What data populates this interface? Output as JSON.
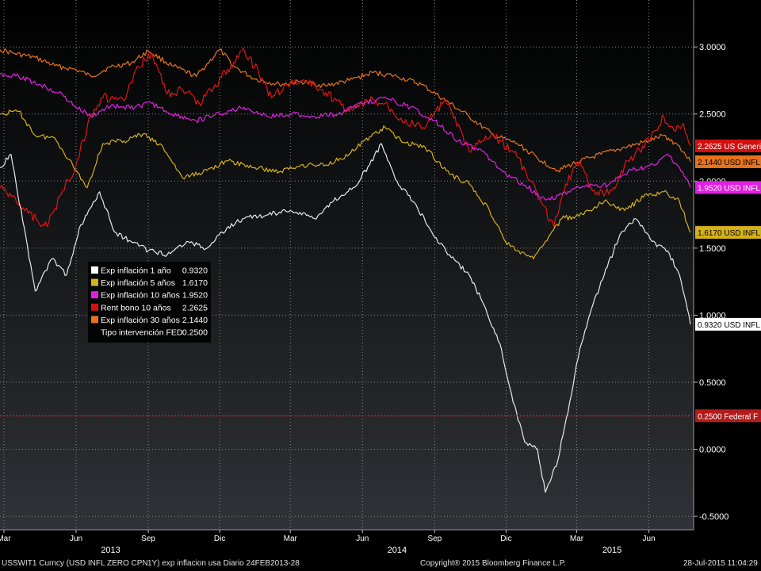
{
  "chart_data": {
    "type": "line",
    "title": "",
    "ylim": [
      -0.6,
      3.35
    ],
    "y_ticks": [
      -0.5,
      0.0,
      0.5,
      1.0,
      1.5,
      2.0,
      2.5,
      3.0
    ],
    "y_tick_labels": [
      "-0.5000",
      "0.0000",
      "0.5000",
      "1.0000",
      "1.5000",
      "2.0000",
      "2.5000",
      "3.0000"
    ],
    "x_range": [
      "2013-02-24",
      "2015-07-28"
    ],
    "x_ticks": [
      {
        "date": "2013-03-01",
        "label": "Mar"
      },
      {
        "date": "2013-06-01",
        "label": "Jun"
      },
      {
        "date": "2013-09-01",
        "label": "Sep"
      },
      {
        "date": "2013-12-01",
        "label": "Dic"
      },
      {
        "date": "2014-03-01",
        "label": "Mar"
      },
      {
        "date": "2014-06-01",
        "label": "Jun"
      },
      {
        "date": "2014-09-01",
        "label": "Sep"
      },
      {
        "date": "2014-12-01",
        "label": "Dic"
      },
      {
        "date": "2015-03-01",
        "label": "Mar"
      },
      {
        "date": "2015-06-01",
        "label": "Jun"
      }
    ],
    "year_labels": [
      {
        "date": "2013-07-15",
        "label": "2013"
      },
      {
        "date": "2014-07-15",
        "label": "2014"
      },
      {
        "date": "2015-04-15",
        "label": "2015"
      }
    ],
    "legend_position": "middle-left",
    "grid": true,
    "series": [
      {
        "name": "Exp inflación 30 años",
        "last": "2.1440",
        "tag": "2.1440 USD INFL",
        "color": "#e8731a",
        "tag_bg": "#e8731a",
        "tag_fg": "#000000",
        "points": [
          [
            "2013-02-24",
            2.98
          ],
          [
            "2013-03-15",
            2.95
          ],
          [
            "2013-04-10",
            2.92
          ],
          [
            "2013-05-05",
            2.86
          ],
          [
            "2013-06-01",
            2.83
          ],
          [
            "2013-06-20",
            2.78
          ],
          [
            "2013-07-15",
            2.85
          ],
          [
            "2013-08-10",
            2.88
          ],
          [
            "2013-09-01",
            2.97
          ],
          [
            "2013-10-01",
            2.86
          ],
          [
            "2013-11-01",
            2.78
          ],
          [
            "2013-12-01",
            2.98
          ],
          [
            "2013-12-20",
            2.85
          ],
          [
            "2014-01-15",
            2.76
          ],
          [
            "2014-02-15",
            2.72
          ],
          [
            "2014-03-15",
            2.74
          ],
          [
            "2014-04-15",
            2.71
          ],
          [
            "2014-05-15",
            2.75
          ],
          [
            "2014-06-15",
            2.81
          ],
          [
            "2014-07-15",
            2.78
          ],
          [
            "2014-08-15",
            2.72
          ],
          [
            "2014-09-15",
            2.6
          ],
          [
            "2014-10-15",
            2.48
          ],
          [
            "2014-11-15",
            2.34
          ],
          [
            "2014-12-15",
            2.28
          ],
          [
            "2015-01-15",
            2.15
          ],
          [
            "2015-02-05",
            2.08
          ],
          [
            "2015-03-01",
            2.14
          ],
          [
            "2015-04-01",
            2.2
          ],
          [
            "2015-05-01",
            2.25
          ],
          [
            "2015-06-01",
            2.3
          ],
          [
            "2015-06-20",
            2.34
          ],
          [
            "2015-07-10",
            2.26
          ],
          [
            "2015-07-24",
            2.144
          ]
        ]
      },
      {
        "name": "Rent bono 10 años",
        "last": "2.2625",
        "tag": "2.2625 US Generi",
        "color": "#e01414",
        "tag_bg": "#d31010",
        "tag_fg": "#ffffff",
        "points": [
          [
            "2013-02-24",
            1.95
          ],
          [
            "2013-03-15",
            1.88
          ],
          [
            "2013-04-01",
            1.76
          ],
          [
            "2013-04-25",
            1.66
          ],
          [
            "2013-05-15",
            1.93
          ],
          [
            "2013-06-01",
            2.12
          ],
          [
            "2013-06-20",
            2.5
          ],
          [
            "2013-07-05",
            2.62
          ],
          [
            "2013-08-01",
            2.6
          ],
          [
            "2013-08-20",
            2.85
          ],
          [
            "2013-09-05",
            2.96
          ],
          [
            "2013-09-25",
            2.65
          ],
          [
            "2013-10-15",
            2.68
          ],
          [
            "2013-11-05",
            2.58
          ],
          [
            "2013-11-25",
            2.72
          ],
          [
            "2013-12-15",
            2.85
          ],
          [
            "2013-12-31",
            2.99
          ],
          [
            "2014-01-20",
            2.8
          ],
          [
            "2014-02-05",
            2.62
          ],
          [
            "2014-02-25",
            2.72
          ],
          [
            "2014-03-20",
            2.75
          ],
          [
            "2014-04-15",
            2.66
          ],
          [
            "2014-05-15",
            2.52
          ],
          [
            "2014-06-10",
            2.6
          ],
          [
            "2014-06-30",
            2.58
          ],
          [
            "2014-07-20",
            2.47
          ],
          [
            "2014-08-15",
            2.39
          ],
          [
            "2014-09-15",
            2.6
          ],
          [
            "2014-10-15",
            2.22
          ],
          [
            "2014-11-15",
            2.35
          ],
          [
            "2014-12-15",
            2.18
          ],
          [
            "2015-01-15",
            1.84
          ],
          [
            "2015-01-31",
            1.66
          ],
          [
            "2015-02-15",
            1.98
          ],
          [
            "2015-03-05",
            2.15
          ],
          [
            "2015-03-25",
            1.9
          ],
          [
            "2015-04-15",
            1.93
          ],
          [
            "2015-05-05",
            2.15
          ],
          [
            "2015-05-20",
            2.23
          ],
          [
            "2015-06-10",
            2.38
          ],
          [
            "2015-06-20",
            2.48
          ],
          [
            "2015-07-05",
            2.37
          ],
          [
            "2015-07-15",
            2.43
          ],
          [
            "2015-07-24",
            2.2625
          ]
        ]
      },
      {
        "name": "Exp inflación 10 años",
        "last": "1.9520",
        "tag": "1.9520 USD INFL",
        "color": "#e020e0",
        "tag_bg": "#e020e0",
        "tag_fg": "#ffffff",
        "points": [
          [
            "2013-02-24",
            2.8
          ],
          [
            "2013-03-20",
            2.78
          ],
          [
            "2013-04-15",
            2.72
          ],
          [
            "2013-05-10",
            2.66
          ],
          [
            "2013-06-01",
            2.55
          ],
          [
            "2013-06-20",
            2.48
          ],
          [
            "2013-07-15",
            2.56
          ],
          [
            "2013-08-15",
            2.55
          ],
          [
            "2013-09-05",
            2.58
          ],
          [
            "2013-10-01",
            2.5
          ],
          [
            "2013-11-01",
            2.45
          ],
          [
            "2013-12-01",
            2.5
          ],
          [
            "2014-01-01",
            2.55
          ],
          [
            "2014-02-01",
            2.48
          ],
          [
            "2014-03-01",
            2.5
          ],
          [
            "2014-04-01",
            2.48
          ],
          [
            "2014-05-01",
            2.5
          ],
          [
            "2014-06-01",
            2.58
          ],
          [
            "2014-07-01",
            2.62
          ],
          [
            "2014-08-01",
            2.55
          ],
          [
            "2014-09-01",
            2.45
          ],
          [
            "2014-10-01",
            2.3
          ],
          [
            "2014-11-01",
            2.22
          ],
          [
            "2014-12-01",
            2.05
          ],
          [
            "2014-12-25",
            1.97
          ],
          [
            "2015-01-20",
            1.86
          ],
          [
            "2015-02-10",
            1.9
          ],
          [
            "2015-03-10",
            1.96
          ],
          [
            "2015-04-10",
            1.97
          ],
          [
            "2015-05-10",
            2.08
          ],
          [
            "2015-06-10",
            2.12
          ],
          [
            "2015-06-25",
            2.2
          ],
          [
            "2015-07-10",
            2.1
          ],
          [
            "2015-07-24",
            1.952
          ]
        ]
      },
      {
        "name": "Exp inflación 5 años",
        "last": "1.6170",
        "tag": "1.6170 USD INFL",
        "color": "#d4b01a",
        "tag_bg": "#d4b01a",
        "tag_fg": "#000000",
        "points": [
          [
            "2013-02-24",
            2.5
          ],
          [
            "2013-03-20",
            2.52
          ],
          [
            "2013-04-10",
            2.34
          ],
          [
            "2013-05-05",
            2.32
          ],
          [
            "2013-06-01",
            2.08
          ],
          [
            "2013-06-15",
            1.95
          ],
          [
            "2013-07-05",
            2.28
          ],
          [
            "2013-08-01",
            2.3
          ],
          [
            "2013-08-25",
            2.35
          ],
          [
            "2013-09-20",
            2.25
          ],
          [
            "2013-10-15",
            2.02
          ],
          [
            "2013-11-15",
            2.08
          ],
          [
            "2013-12-10",
            2.15
          ],
          [
            "2014-01-15",
            2.1
          ],
          [
            "2014-02-15",
            2.07
          ],
          [
            "2014-03-15",
            2.12
          ],
          [
            "2014-04-15",
            2.12
          ],
          [
            "2014-05-15",
            2.2
          ],
          [
            "2014-06-10",
            2.33
          ],
          [
            "2014-06-30",
            2.4
          ],
          [
            "2014-07-20",
            2.3
          ],
          [
            "2014-08-20",
            2.25
          ],
          [
            "2014-09-20",
            2.05
          ],
          [
            "2014-10-15",
            1.98
          ],
          [
            "2014-11-10",
            1.78
          ],
          [
            "2014-11-30",
            1.55
          ],
          [
            "2014-12-15",
            1.48
          ],
          [
            "2015-01-05",
            1.42
          ],
          [
            "2015-01-20",
            1.55
          ],
          [
            "2015-02-10",
            1.72
          ],
          [
            "2015-03-10",
            1.75
          ],
          [
            "2015-04-05",
            1.85
          ],
          [
            "2015-05-01",
            1.78
          ],
          [
            "2015-05-25",
            1.88
          ],
          [
            "2015-06-20",
            1.92
          ],
          [
            "2015-07-10",
            1.85
          ],
          [
            "2015-07-24",
            1.617
          ]
        ]
      },
      {
        "name": "Exp inflación 1 año",
        "last": "0.9320",
        "tag": "0.9320 USD INFL",
        "color": "#e8e8e8",
        "tag_bg": "#ffffff",
        "tag_fg": "#000000",
        "points": [
          [
            "2013-02-24",
            2.1
          ],
          [
            "2013-03-10",
            2.2
          ],
          [
            "2013-03-25",
            1.7
          ],
          [
            "2013-04-10",
            1.18
          ],
          [
            "2013-05-01",
            1.42
          ],
          [
            "2013-05-20",
            1.3
          ],
          [
            "2013-06-05",
            1.65
          ],
          [
            "2013-06-15",
            1.75
          ],
          [
            "2013-07-01",
            1.92
          ],
          [
            "2013-07-20",
            1.62
          ],
          [
            "2013-08-10",
            1.55
          ],
          [
            "2013-09-01",
            1.48
          ],
          [
            "2013-09-25",
            1.45
          ],
          [
            "2013-10-20",
            1.55
          ],
          [
            "2013-11-15",
            1.5
          ],
          [
            "2013-12-10",
            1.65
          ],
          [
            "2014-01-01",
            1.72
          ],
          [
            "2014-02-01",
            1.75
          ],
          [
            "2014-03-01",
            1.78
          ],
          [
            "2014-04-01",
            1.72
          ],
          [
            "2014-04-25",
            1.85
          ],
          [
            "2014-05-20",
            1.95
          ],
          [
            "2014-06-10",
            2.12
          ],
          [
            "2014-06-25",
            2.28
          ],
          [
            "2014-07-15",
            2.0
          ],
          [
            "2014-08-10",
            1.8
          ],
          [
            "2014-09-01",
            1.58
          ],
          [
            "2014-09-20",
            1.45
          ],
          [
            "2014-10-15",
            1.3
          ],
          [
            "2014-11-05",
            1.05
          ],
          [
            "2014-11-25",
            0.75
          ],
          [
            "2014-12-10",
            0.35
          ],
          [
            "2014-12-25",
            0.05
          ],
          [
            "2015-01-10",
            0.0
          ],
          [
            "2015-01-20",
            -0.32
          ],
          [
            "2015-02-05",
            -0.08
          ],
          [
            "2015-02-20",
            0.35
          ],
          [
            "2015-03-05",
            0.75
          ],
          [
            "2015-03-20",
            1.05
          ],
          [
            "2015-04-05",
            1.3
          ],
          [
            "2015-04-25",
            1.6
          ],
          [
            "2015-05-15",
            1.72
          ],
          [
            "2015-06-05",
            1.55
          ],
          [
            "2015-06-25",
            1.48
          ],
          [
            "2015-07-10",
            1.3
          ],
          [
            "2015-07-24",
            0.932
          ]
        ]
      },
      {
        "name": "Tipo intervención FED",
        "last": "0.2500",
        "tag": "0.2500 Federal F",
        "color": "#c0222a",
        "tag_bg": "#b31b1b",
        "tag_fg": "#ffffff",
        "dashed": true,
        "points": [
          [
            "2013-02-24",
            0.25
          ],
          [
            "2015-07-24",
            0.25
          ]
        ]
      }
    ],
    "footer": {
      "ticker": "USSWIT1 Curncy (USD INFL ZERO CPN",
      "desc": "1Y) exp inflacion usa  Diario 24FEB2013-28",
      "copyright": "Copyright® 2015 Bloomberg Finance L.P.",
      "timestamp": "28-Jul-2015 11:04:29"
    }
  }
}
